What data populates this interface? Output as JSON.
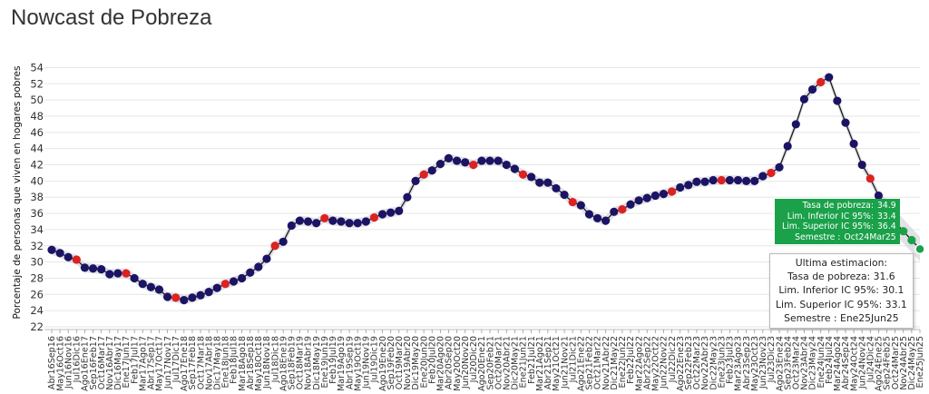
{
  "page": {
    "title": "Nowcast de Pobreza"
  },
  "colors": {
    "point": "#1b1464",
    "highlight": "#dd2222",
    "estimate": "#1aa14a",
    "line": "#1b1b1b",
    "band": "#c9c9d1"
  },
  "chart_data": {
    "type": "line",
    "title": "Nowcast de Pobreza",
    "xlabel": "",
    "ylabel": "Porcentaje de personas que viven en hogares pobres",
    "ylim": [
      22,
      54.5
    ],
    "yticks": [
      22,
      24,
      26,
      28,
      30,
      32,
      34,
      36,
      38,
      40,
      42,
      44,
      46,
      48,
      50,
      52,
      54
    ],
    "grid": true,
    "x": [
      "Abr16Sep16",
      "May16Oct16",
      "Jun16Nov16",
      "Jul16Dic16",
      "Ago16Ene17",
      "Sep16Feb17",
      "Oct16Mar17",
      "Nov16Abr17",
      "Dic16May17",
      "Ene17Jun17",
      "Feb17Jul17",
      "Mar17Ago17",
      "Abr17Sep17",
      "May17Oct17",
      "Jun17Nov17",
      "Jul17Dic17",
      "Ago17Ene18",
      "Sep17Feb18",
      "Oct17Mar18",
      "Nov17Abr18",
      "Dic17May18",
      "Ene18Jun18",
      "Feb18Jul18",
      "Mar18Ago18",
      "Abr18Sep18",
      "May18Oct18",
      "Jun18Nov18",
      "Jul18Dic18",
      "Ago18Ene19",
      "Sep18Feb19",
      "Oct18Mar19",
      "Nov18Abr19",
      "Dic18May19",
      "Ene19Jun19",
      "Feb19Jul19",
      "Mar19Ago19",
      "Abr19Sep19",
      "May19Oct19",
      "Jun19Nov19",
      "Jul19Dic19",
      "Ago19Ene20",
      "Sep19Feb20",
      "Oct19Mar20",
      "Nov19Abr20",
      "Dic19May20",
      "Ene20Jun20",
      "Feb20Jul20",
      "Mar20Ago20",
      "Abr20Sep20",
      "May20Oct20",
      "Jun20Nov20",
      "Jul20Dic20",
      "Ago20Ene21",
      "Sep20Feb21",
      "Oct20Mar21",
      "Nov20Abr21",
      "Dic20May21",
      "Ene21Jun21",
      "Feb21Jul21",
      "Mar21Ago21",
      "Abr21Sep21",
      "May21Oct21",
      "Jun21Nov21",
      "Jul21Dic21",
      "Ago21Ene22",
      "Sep21Feb22",
      "Oct21Mar22",
      "Nov21Abr22",
      "Dic21May22",
      "Ene22Jun22",
      "Feb22Jul22",
      "Mar22Ago22",
      "Abr22Sep22",
      "May22Oct22",
      "Jun22Nov22",
      "Jul22Dic22",
      "Ago22Ene23",
      "Sep22Feb23",
      "Oct22Mar23",
      "Nov22Abr23",
      "Dic22May23",
      "Ene23Jun23",
      "Feb23Jul23",
      "Mar23Ago23",
      "Abr23Sep23",
      "May23Oct23",
      "Jun23Nov23",
      "Jul23Dic23",
      "Ago23Ene24",
      "Sep23Feb24",
      "Oct23Mar24",
      "Nov23Abr24",
      "Dic23May24",
      "Ene24Jun24",
      "Feb24Jul24",
      "Mar24Ago24",
      "Abr24Sep24",
      "May24Oct24",
      "Jun24Nov24",
      "Jul24Dic24",
      "Ago24Ene25",
      "Sep24Feb25",
      "Oct24Mar25",
      "Nov24Abr25",
      "Dic24May25",
      "Ene25Jun25"
    ],
    "series": [
      {
        "values": [
          31.5,
          31.1,
          30.6,
          30.3,
          29.3,
          29.2,
          29.1,
          28.5,
          28.6,
          28.6,
          28.0,
          27.3,
          26.9,
          26.6,
          25.7,
          25.6,
          25.3,
          25.6,
          25.9,
          26.3,
          26.8,
          27.3,
          27.6,
          28.0,
          28.7,
          29.4,
          30.4,
          32.0,
          32.5,
          34.5,
          35.1,
          35.0,
          34.8,
          35.4,
          35.1,
          35.0,
          34.8,
          34.8,
          35.0,
          35.5,
          35.9,
          36.1,
          36.3,
          38.0,
          40.0,
          40.8,
          41.3,
          42.1,
          42.8,
          42.5,
          42.3,
          42.0,
          42.5,
          42.5,
          42.5,
          42.0,
          41.5,
          40.8,
          40.5,
          39.8,
          39.8,
          39.1,
          38.3,
          37.4,
          37.0,
          35.9,
          35.4,
          35.1,
          36.2,
          36.5,
          37.1,
          37.6,
          37.9,
          38.2,
          38.4,
          38.7,
          39.2,
          39.5,
          39.9,
          39.9,
          40.1,
          40.1,
          40.1,
          40.1,
          40.0,
          40.0,
          40.6,
          41.0,
          41.7,
          44.3,
          47.0,
          50.1,
          51.3,
          52.2,
          52.8,
          49.9,
          47.2,
          44.6,
          42.0,
          40.3,
          38.2,
          36.2,
          34.9,
          33.8,
          32.7,
          31.6
        ],
        "highlight_indices": [
          3,
          9,
          15,
          21,
          27,
          33,
          39,
          45,
          51,
          57,
          63,
          69,
          75,
          81,
          87,
          93,
          99
        ],
        "estimate_start_index": 101
      }
    ]
  },
  "tooltip_green": {
    "rows": [
      {
        "label": "Tasa de pobreza:",
        "value": "34.9"
      },
      {
        "label": "Lim. Inferior IC 95%:",
        "value": "33.4"
      },
      {
        "label": "Lim. Superior IC 95%:",
        "value": "36.4"
      },
      {
        "label": "Semestre :",
        "value": "Oct24Mar25"
      }
    ]
  },
  "tooltip_white": {
    "title": "Ultima estimacion:",
    "rows": [
      {
        "label": "Tasa de pobreza:",
        "value": "31.6"
      },
      {
        "label": "Lim. Inferior IC 95%:",
        "value": "30.1"
      },
      {
        "label": "Lim. Superior IC 95%:",
        "value": "33.1"
      },
      {
        "label": "Semestre :",
        "value": "Ene25Jun25"
      }
    ]
  }
}
